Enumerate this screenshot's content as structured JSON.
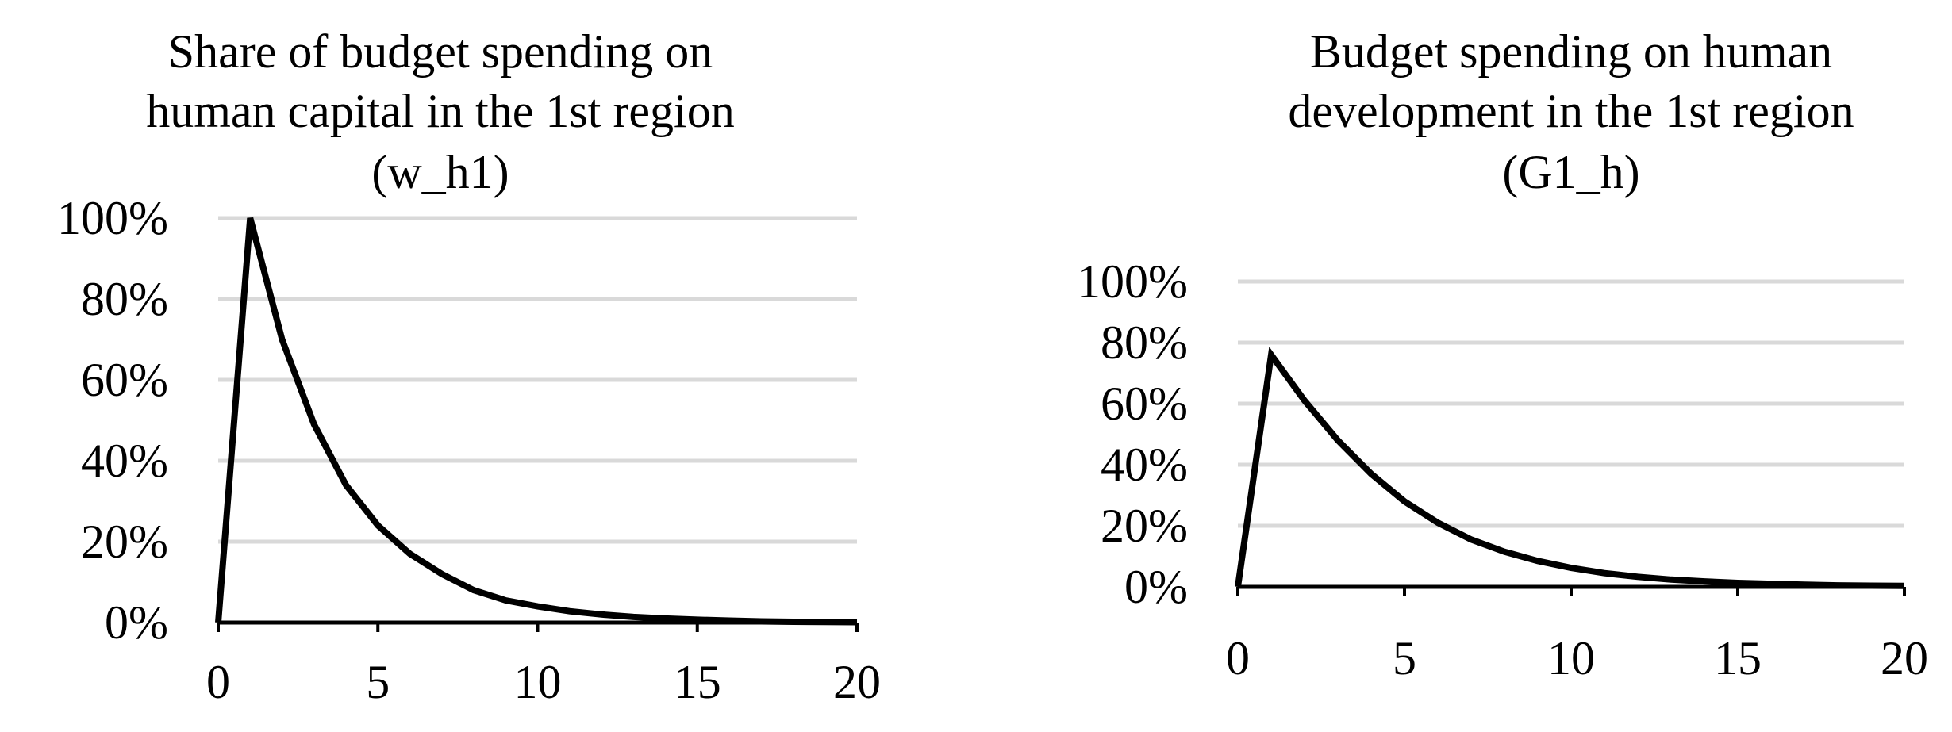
{
  "chart_data": [
    {
      "type": "line",
      "title": [
        "Share of budget spending on",
        "human capital in the 1st region",
        "(w_h1)"
      ],
      "xlabel": "",
      "ylabel": "",
      "xlim": [
        0,
        20
      ],
      "ylim": [
        0,
        1
      ],
      "xticks": [
        "0",
        "5",
        "10",
        "15",
        "20"
      ],
      "yticks": [
        "0%",
        "20%",
        "40%",
        "60%",
        "80%",
        "100%"
      ],
      "grid": true,
      "line_color": "#000000",
      "grid_color": "#d9d9d9",
      "series": [
        {
          "x": [
            0,
            1,
            2,
            3,
            4,
            5,
            6,
            7,
            8,
            9,
            10,
            11,
            12,
            13,
            14,
            15,
            16,
            17,
            18,
            19,
            20
          ],
          "values": [
            0,
            1.0,
            0.7,
            0.49,
            0.34,
            0.24,
            0.17,
            0.12,
            0.08,
            0.055,
            0.04,
            0.028,
            0.02,
            0.014,
            0.01,
            0.007,
            0.005,
            0.003,
            0.002,
            0.0015,
            0.001
          ]
        }
      ]
    },
    {
      "type": "line",
      "title": [
        "Budget spending on human",
        "development in the 1st region",
        "(G1_h)"
      ],
      "xlabel": "",
      "ylabel": "",
      "xlim": [
        0,
        20
      ],
      "ylim": [
        0,
        1
      ],
      "xticks": [
        "0",
        "5",
        "10",
        "15",
        "20"
      ],
      "yticks": [
        "0%",
        "20%",
        "40%",
        "60%",
        "80%",
        "100%"
      ],
      "grid": true,
      "line_color": "#000000",
      "grid_color": "#d9d9d9",
      "series": [
        {
          "x": [
            0,
            1,
            2,
            3,
            4,
            5,
            6,
            7,
            8,
            9,
            10,
            11,
            12,
            13,
            14,
            15,
            16,
            17,
            18,
            19,
            20
          ],
          "values": [
            0,
            0.76,
            0.61,
            0.48,
            0.37,
            0.28,
            0.21,
            0.155,
            0.115,
            0.085,
            0.062,
            0.045,
            0.033,
            0.024,
            0.018,
            0.013,
            0.01,
            0.007,
            0.005,
            0.004,
            0.003
          ]
        }
      ]
    }
  ]
}
